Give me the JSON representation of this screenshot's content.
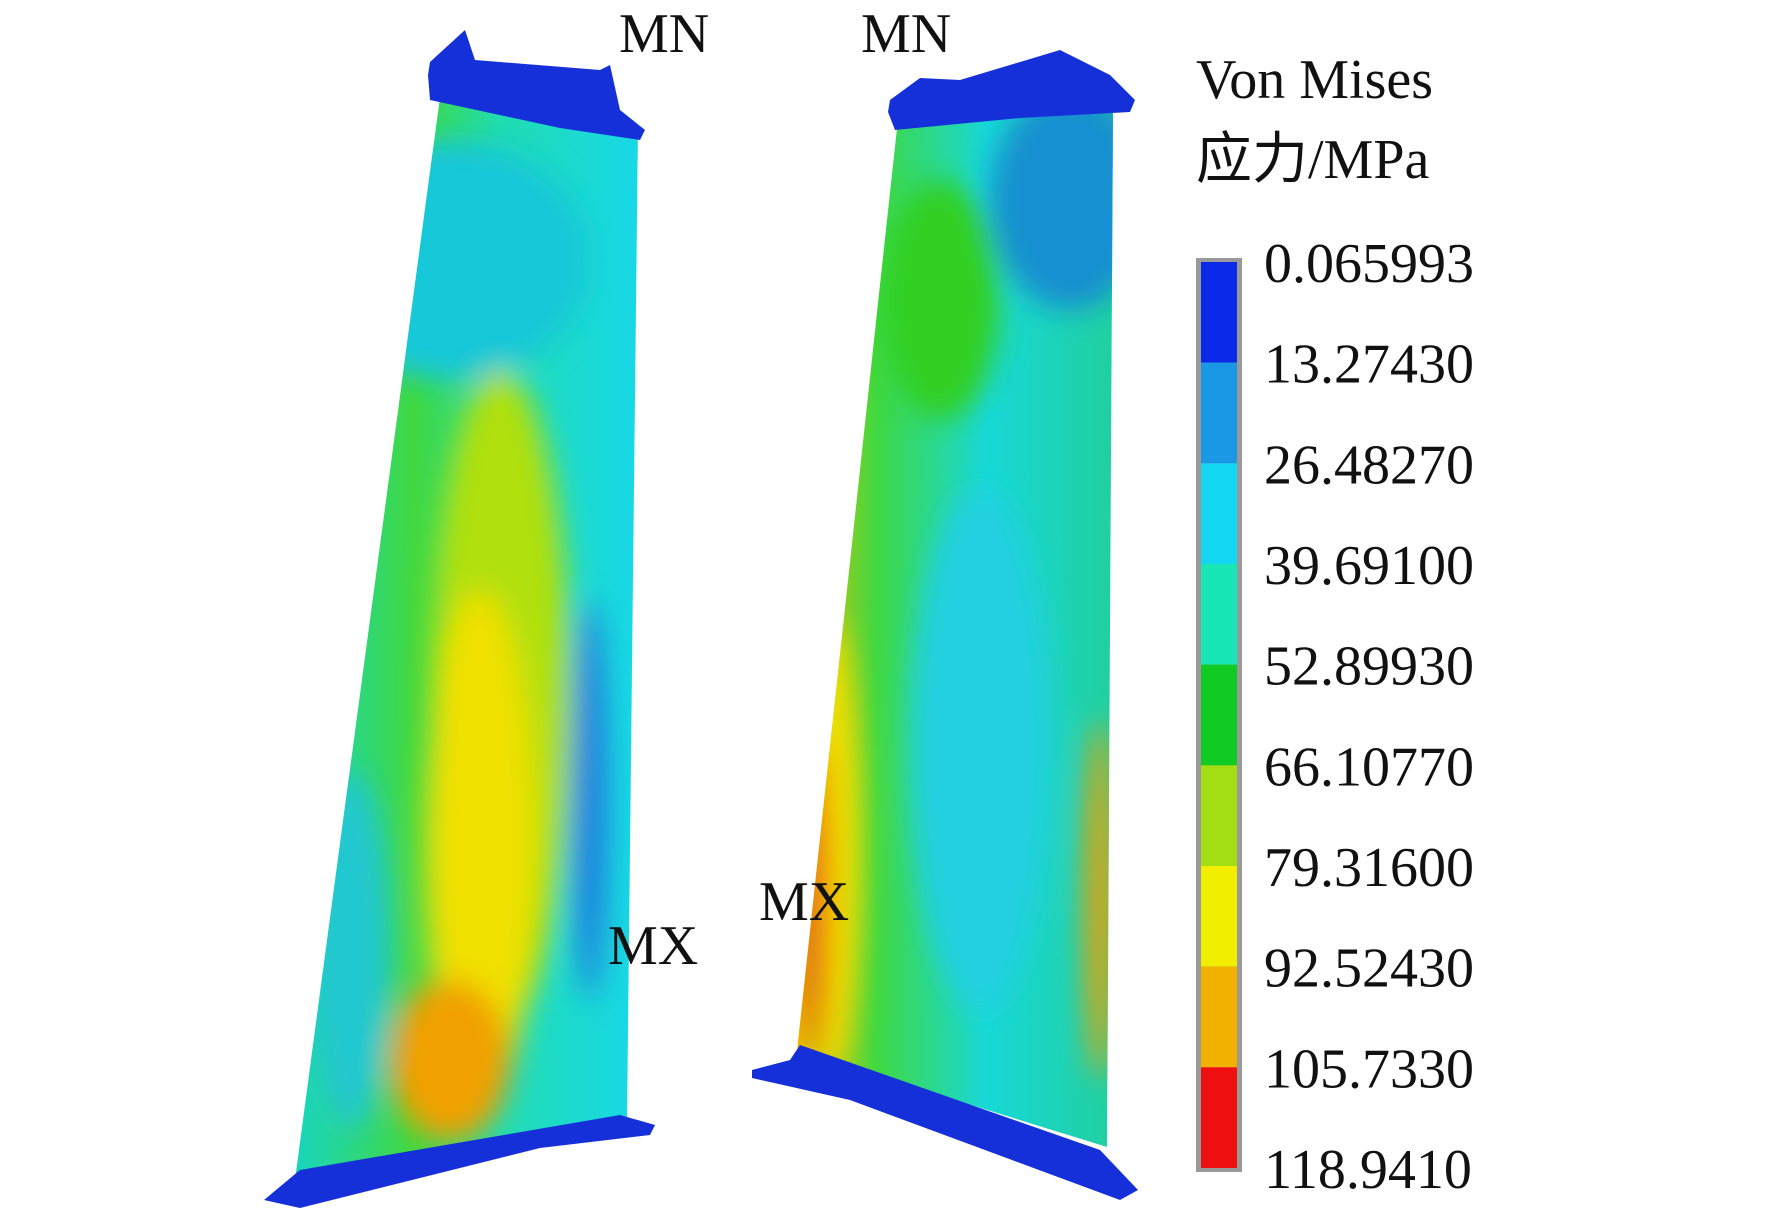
{
  "annotations": [
    "MN",
    "MN",
    "MX",
    "MX"
  ],
  "legend": {
    "title": [
      "Von Mises",
      "应力/MPa"
    ],
    "labels": [
      "0.065993",
      "13.27430",
      "26.48270",
      "39.69100",
      "52.89930",
      "66.10770",
      "79.31600",
      "92.52430",
      "105.7330",
      "118.9410"
    ],
    "colors": [
      "#0a2ae8",
      "#1a98e6",
      "#12d6f2",
      "#18e6b4",
      "#10cc22",
      "#a2de12",
      "#f2ee00",
      "#f2b000",
      "#ee1010"
    ]
  }
}
